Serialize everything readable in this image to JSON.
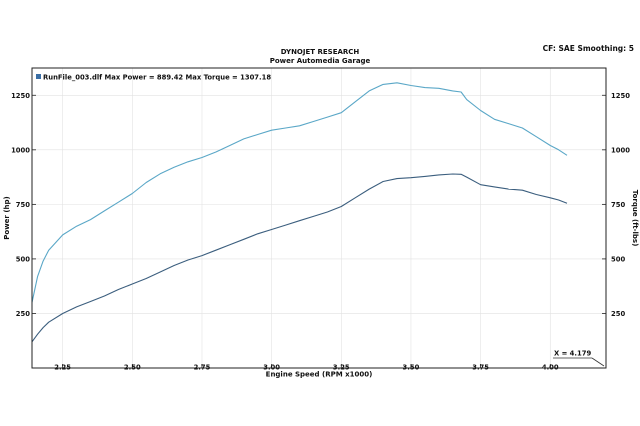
{
  "header": {
    "title": "DYNOJET RESEARCH",
    "subtitle": "Power Automedia Garage",
    "cf_info": "CF: SAE  Smoothing: 5"
  },
  "chart_data": {
    "type": "line",
    "xlabel": "Engine Speed (RPM x1000)",
    "ylabel_left": "Power (hp)",
    "ylabel_right": "Torque (ft-lbs)",
    "xlim": [
      2.14,
      4.2
    ],
    "ylim": [
      0,
      1375
    ],
    "x_ticks": [
      "2.25",
      "2.50",
      "2.75",
      "3.00",
      "3.25",
      "3.50",
      "3.75",
      "4.00"
    ],
    "y_ticks_left": [
      "1250",
      "1000",
      "750",
      "500",
      "250"
    ],
    "y_ticks_right": [
      "1250",
      "1000",
      "750",
      "500",
      "250"
    ],
    "y_tick_values": [
      1250,
      1000,
      750,
      500,
      250
    ],
    "legend_text": "RunFile_003.dlf Max Power = 889.42    Max Torque = 1307.18",
    "legend_color": "#3a6ea5",
    "cursor_text": "X = 4.179",
    "series": [
      {
        "color": "#5aa7c7",
        "x": [
          2.14,
          2.16,
          2.18,
          2.2,
          2.25,
          2.3,
          2.35,
          2.4,
          2.45,
          2.5,
          2.55,
          2.6,
          2.65,
          2.7,
          2.75,
          2.8,
          2.85,
          2.9,
          2.95,
          3.0,
          3.05,
          3.1,
          3.15,
          3.2,
          3.25,
          3.3,
          3.35,
          3.4,
          3.45,
          3.5,
          3.55,
          3.6,
          3.65,
          3.68,
          3.7,
          3.75,
          3.8,
          3.85,
          3.9,
          3.95,
          4.0,
          4.03,
          4.06
        ],
        "values": [
          300,
          420,
          490,
          540,
          610,
          650,
          680,
          720,
          760,
          800,
          850,
          890,
          920,
          945,
          965,
          990,
          1020,
          1050,
          1070,
          1090,
          1100,
          1110,
          1130,
          1150,
          1170,
          1220,
          1270,
          1300,
          1307,
          1295,
          1285,
          1282,
          1270,
          1265,
          1230,
          1180,
          1140,
          1120,
          1100,
          1060,
          1020,
          1000,
          975
        ]
      },
      {
        "color": "#3b5e7e",
        "x": [
          2.14,
          2.16,
          2.18,
          2.2,
          2.25,
          2.3,
          2.35,
          2.4,
          2.45,
          2.5,
          2.55,
          2.6,
          2.65,
          2.7,
          2.75,
          2.8,
          2.85,
          2.9,
          2.95,
          3.0,
          3.05,
          3.1,
          3.15,
          3.2,
          3.25,
          3.3,
          3.35,
          3.4,
          3.45,
          3.5,
          3.55,
          3.6,
          3.65,
          3.68,
          3.7,
          3.75,
          3.8,
          3.85,
          3.9,
          3.95,
          4.0,
          4.03,
          4.06
        ],
        "values": [
          120,
          155,
          185,
          210,
          250,
          280,
          305,
          330,
          360,
          385,
          410,
          440,
          470,
          495,
          515,
          540,
          565,
          590,
          615,
          635,
          655,
          675,
          695,
          715,
          740,
          780,
          820,
          855,
          868,
          872,
          878,
          885,
          889,
          888,
          875,
          840,
          830,
          820,
          815,
          795,
          780,
          770,
          755
        ]
      }
    ]
  }
}
